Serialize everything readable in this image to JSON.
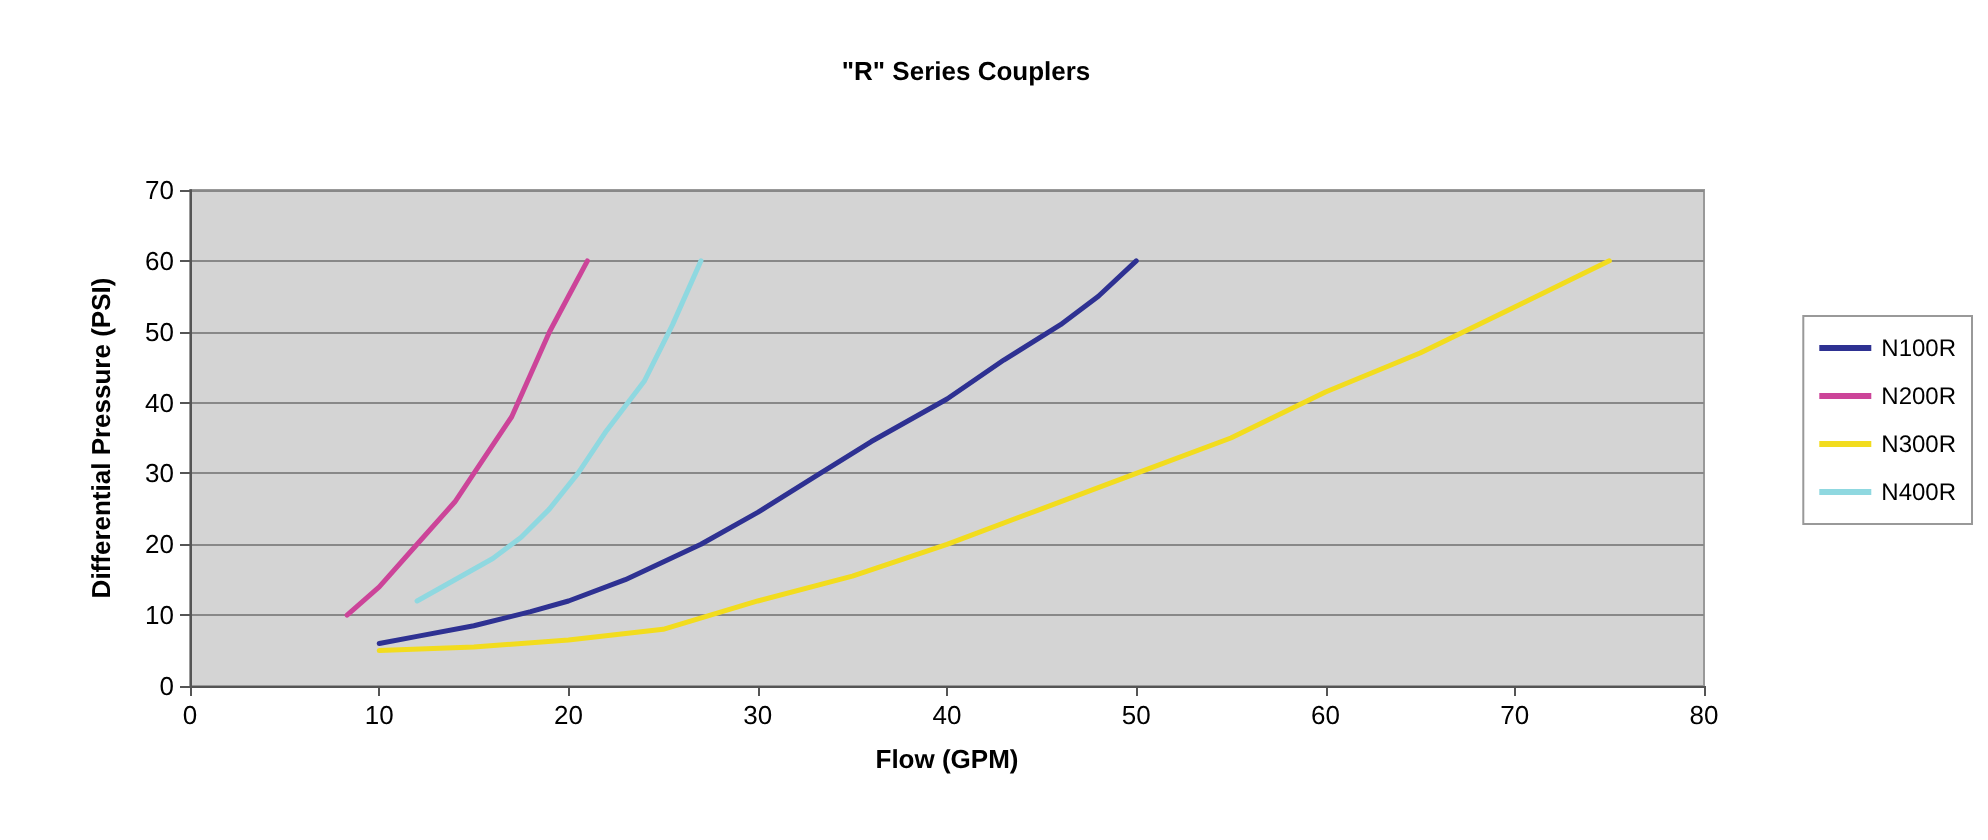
{
  "chart_data": {
    "type": "line",
    "title": "\"R\" Series Couplers",
    "xlabel": "Flow (GPM)",
    "ylabel": "Differential Pressure (PSI)",
    "xlim": [
      0,
      80
    ],
    "xticks": [
      0,
      10,
      20,
      30,
      40,
      50,
      60,
      70,
      80
    ],
    "ylim": [
      0,
      70
    ],
    "yticks": [
      0,
      10,
      20,
      30,
      40,
      50,
      60,
      70
    ],
    "grid": "y",
    "legend": "right",
    "marker": "none",
    "line_style": "solid",
    "series": [
      {
        "name": "N100R",
        "color": "#2e3192",
        "x": [
          10,
          12,
          15,
          18,
          20,
          23,
          25,
          27,
          30,
          33,
          36,
          40,
          43,
          46,
          48,
          50
        ],
        "values": [
          6,
          7,
          8.5,
          10.5,
          12,
          15,
          17.5,
          20,
          24.5,
          29.5,
          34.5,
          40.5,
          46,
          51,
          55,
          60
        ]
      },
      {
        "name": "N200R",
        "color": "#cc4499",
        "x": [
          8.3,
          10,
          12,
          14,
          15,
          17,
          18,
          19,
          20,
          21
        ],
        "values": [
          10,
          14,
          20,
          26,
          30,
          38,
          44,
          50,
          55,
          60
        ]
      },
      {
        "name": "N300R",
        "color": "#f2dc1e",
        "x": [
          10,
          15,
          20,
          25,
          30,
          35,
          40,
          45,
          50,
          55,
          60,
          65,
          70,
          75
        ],
        "values": [
          5,
          5.5,
          6.5,
          8,
          12,
          15.5,
          20,
          25,
          30,
          35,
          41.5,
          47,
          53.5,
          60
        ]
      },
      {
        "name": "N400R",
        "color": "#8fd8e0",
        "x": [
          12,
          14,
          16,
          17.5,
          19,
          20.5,
          22,
          24,
          25.5,
          27
        ],
        "values": [
          12,
          15,
          18,
          21,
          25,
          30,
          36,
          43,
          51,
          60
        ]
      }
    ]
  }
}
